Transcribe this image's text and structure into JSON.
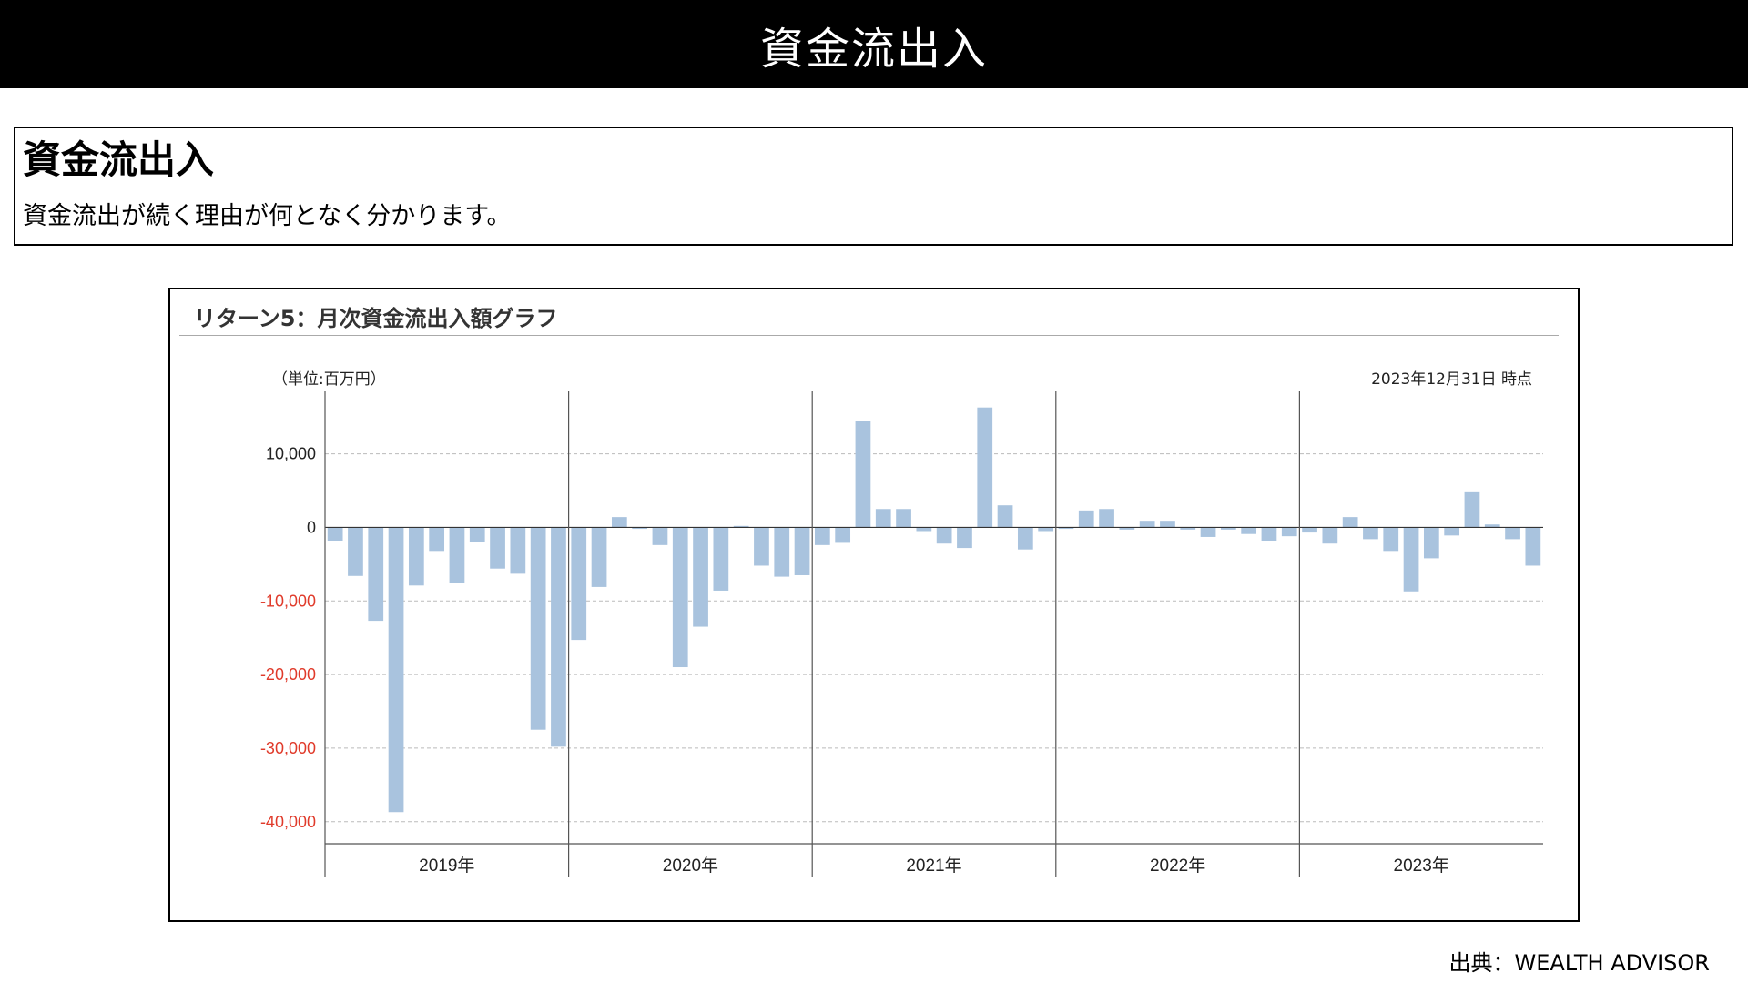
{
  "header": {
    "title": "資金流出入"
  },
  "intro": {
    "heading": "資金流出入",
    "description": "資金流出が続く理由が何となく分かります。"
  },
  "chart_panel": {
    "title": "リターン5：月次資金流出入額グラフ",
    "unit": "（単位:百万円）",
    "as_of": "2023年12月31日 時点"
  },
  "source": "出典：WEALTH ADVISOR",
  "colors": {
    "bar": "#a9c3de",
    "negative_tick": "#e03a2a",
    "positive_tick": "#222222",
    "grid": "#bbbbbb"
  },
  "chart_data": {
    "type": "bar",
    "title": "リターン5：月次資金流出入額グラフ",
    "ylim": [
      -43000,
      17500
    ],
    "yticks": [
      10000,
      0,
      -10000,
      -20000,
      -30000,
      -40000
    ],
    "ytick_labels": [
      "10,000",
      "0",
      "-10,000",
      "-20,000",
      "-30,000",
      "-40,000"
    ],
    "grid": true,
    "years": [
      "2019年",
      "2020年",
      "2021年",
      "2022年",
      "2023年"
    ],
    "months_per_year": 12,
    "series": [
      {
        "values": [
          -1800,
          -6600,
          -12700,
          -38700,
          -7900,
          -3200,
          -7500,
          -2000,
          -5600,
          -6300,
          -27500,
          -29800,
          -15300,
          -8100,
          1400,
          -200,
          -2400,
          -19000,
          -13500,
          -8600,
          200,
          -5200,
          -6700,
          -6500,
          -2400,
          -2100,
          14500,
          2500,
          2500,
          -500,
          -2200,
          -2800,
          16300,
          3000,
          -3000,
          -500,
          -200,
          2300,
          2500,
          -300,
          900,
          900,
          -300,
          -1300,
          -300,
          -900,
          -1800,
          -1200,
          -700,
          -2200,
          1400,
          -1600,
          -3200,
          -8700,
          -4200,
          -1100,
          4900,
          400,
          -1600,
          -5200
        ]
      }
    ]
  }
}
